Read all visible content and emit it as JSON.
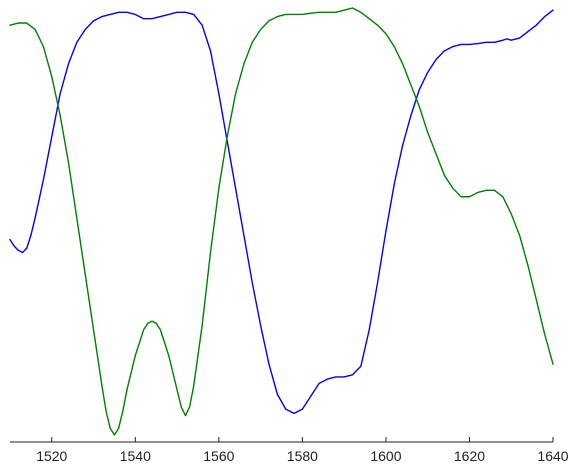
{
  "chart_data": {
    "type": "line",
    "title": "",
    "xlabel": "",
    "ylabel": "",
    "xlim": [
      1510,
      1640
    ],
    "ylim": [
      0,
      1
    ],
    "grid": false,
    "x_ticks": [
      1520,
      1540,
      1560,
      1580,
      1600,
      1620,
      1640
    ],
    "series": [
      {
        "color": "#0000ff",
        "x": [
          1510,
          1511,
          1512,
          1513,
          1514,
          1515,
          1516,
          1518,
          1520,
          1522,
          1524,
          1526,
          1528,
          1530,
          1532,
          1534,
          1536,
          1538,
          1540,
          1542,
          1544,
          1546,
          1548,
          1550,
          1552,
          1554,
          1556,
          1558,
          1560,
          1562,
          1564,
          1566,
          1568,
          1570,
          1572,
          1574,
          1576,
          1578,
          1579,
          1580,
          1582,
          1584,
          1586,
          1588,
          1590,
          1592,
          1594,
          1596,
          1598,
          1600,
          1602,
          1604,
          1606,
          1608,
          1610,
          1612,
          1614,
          1616,
          1618,
          1620,
          1622,
          1624,
          1626,
          1628,
          1629,
          1630,
          1632,
          1634,
          1636,
          1638,
          1640
        ],
        "y": [
          0.46,
          0.445,
          0.435,
          0.43,
          0.44,
          0.47,
          0.51,
          0.6,
          0.7,
          0.8,
          0.87,
          0.92,
          0.95,
          0.97,
          0.98,
          0.985,
          0.99,
          0.99,
          0.985,
          0.975,
          0.975,
          0.98,
          0.985,
          0.99,
          0.99,
          0.985,
          0.96,
          0.9,
          0.8,
          0.69,
          0.58,
          0.47,
          0.36,
          0.26,
          0.17,
          0.1,
          0.065,
          0.055,
          0.06,
          0.065,
          0.095,
          0.125,
          0.135,
          0.14,
          0.14,
          0.145,
          0.165,
          0.25,
          0.36,
          0.48,
          0.59,
          0.68,
          0.75,
          0.81,
          0.85,
          0.88,
          0.9,
          0.91,
          0.915,
          0.915,
          0.917,
          0.92,
          0.92,
          0.925,
          0.928,
          0.925,
          0.93,
          0.945,
          0.96,
          0.98,
          0.995
        ]
      },
      {
        "color": "#008000",
        "x": [
          1510,
          1512,
          1514,
          1516,
          1518,
          1520,
          1522,
          1524,
          1526,
          1528,
          1530,
          1532,
          1533,
          1534,
          1535,
          1536,
          1537,
          1538,
          1540,
          1542,
          1543,
          1544,
          1545,
          1546,
          1548,
          1550,
          1551,
          1552,
          1553,
          1554,
          1556,
          1558,
          1560,
          1562,
          1564,
          1566,
          1568,
          1570,
          1572,
          1574,
          1576,
          1578,
          1580,
          1582,
          1584,
          1586,
          1588,
          1590,
          1592,
          1594,
          1596,
          1598,
          1600,
          1602,
          1604,
          1606,
          1608,
          1610,
          1612,
          1614,
          1616,
          1618,
          1620,
          1622,
          1624,
          1626,
          1628,
          1630,
          1632,
          1634,
          1636,
          1638,
          1640
        ],
        "y": [
          0.96,
          0.965,
          0.965,
          0.95,
          0.91,
          0.84,
          0.75,
          0.64,
          0.51,
          0.38,
          0.25,
          0.12,
          0.06,
          0.02,
          0.005,
          0.02,
          0.06,
          0.11,
          0.19,
          0.25,
          0.265,
          0.27,
          0.265,
          0.25,
          0.19,
          0.11,
          0.07,
          0.05,
          0.07,
          0.12,
          0.26,
          0.43,
          0.58,
          0.7,
          0.8,
          0.87,
          0.92,
          0.95,
          0.97,
          0.98,
          0.985,
          0.985,
          0.985,
          0.988,
          0.99,
          0.99,
          0.99,
          0.995,
          1.0,
          0.99,
          0.975,
          0.96,
          0.94,
          0.91,
          0.87,
          0.82,
          0.77,
          0.71,
          0.66,
          0.61,
          0.58,
          0.56,
          0.56,
          0.57,
          0.575,
          0.575,
          0.56,
          0.52,
          0.47,
          0.4,
          0.32,
          0.24,
          0.17
        ]
      }
    ]
  }
}
